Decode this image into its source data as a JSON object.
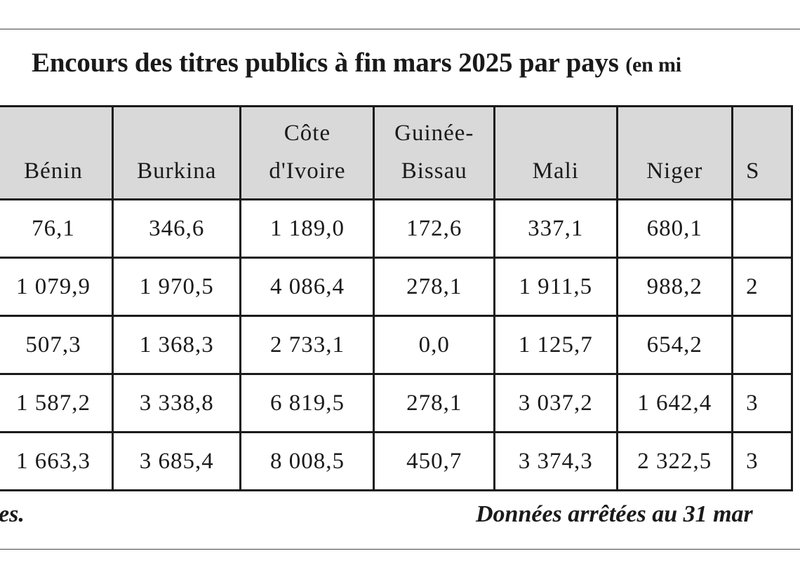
{
  "title": {
    "main": "Encours des titres publics à fin mars 2025 par pays",
    "unit": "(en mi"
  },
  "table": {
    "headers": [
      [
        "",
        "Bénin"
      ],
      [
        "",
        "Burkina"
      ],
      [
        "Côte",
        "d'Ivoire"
      ],
      [
        "Guinée-",
        "Bissau"
      ],
      [
        "",
        "Mali"
      ],
      [
        "",
        "Niger"
      ],
      [
        "",
        "S"
      ]
    ],
    "rows": [
      [
        "76,1",
        "346,6",
        "1 189,0",
        "172,6",
        "337,1",
        "680,1",
        ""
      ],
      [
        "1 079,9",
        "1 970,5",
        "4 086,4",
        "278,1",
        "1 911,5",
        "988,2",
        "2"
      ],
      [
        "507,3",
        "1 368,3",
        "2 733,1",
        "0,0",
        "1 125,7",
        "654,2",
        ""
      ],
      [
        "1 587,2",
        "3 338,8",
        "6 819,5",
        "278,1",
        "3 037,2",
        "1 642,4",
        "3"
      ],
      [
        "1 663,3",
        "3 685,4",
        "8 008,5",
        "450,7",
        "3 374,3",
        "2 322,5",
        "3"
      ]
    ]
  },
  "footnotes": {
    "left": "es.",
    "right": "Données arrêtées au 31 mar"
  }
}
